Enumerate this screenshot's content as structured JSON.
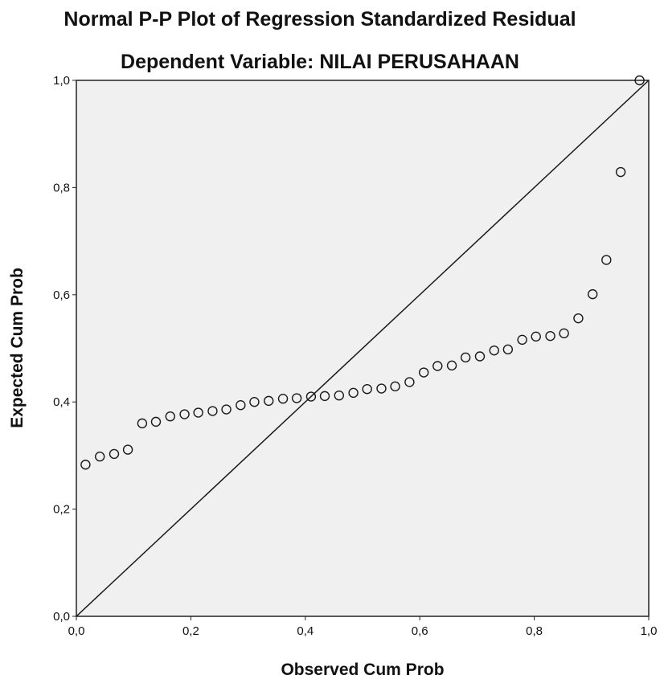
{
  "chart_data": {
    "type": "scatter",
    "title": "Normal P-P Plot of Regression Standardized Residual",
    "subtitle": "Dependent Variable: NILAI PERUSAHAAN",
    "xlabel": "Observed Cum Prob",
    "ylabel": "Expected Cum Prob",
    "xlim": [
      0,
      1
    ],
    "ylim": [
      0,
      1
    ],
    "xticks": [
      "0,0",
      "0,2",
      "0,4",
      "0,6",
      "0,8",
      "1,0"
    ],
    "yticks": [
      "0,0",
      "0,2",
      "0,4",
      "0,6",
      "0,8",
      "1,0"
    ],
    "grid": false,
    "legend": "none",
    "reference_line": {
      "from": [
        0,
        0
      ],
      "to": [
        1,
        1
      ]
    },
    "colors": {
      "plot_background": "#f0f0f0",
      "marker": "#1a1a1a",
      "line": "#1a1a1a"
    },
    "points": [
      {
        "x": 0.016,
        "y": 0.283
      },
      {
        "x": 0.041,
        "y": 0.298
      },
      {
        "x": 0.066,
        "y": 0.303
      },
      {
        "x": 0.09,
        "y": 0.311
      },
      {
        "x": 0.115,
        "y": 0.36
      },
      {
        "x": 0.139,
        "y": 0.363
      },
      {
        "x": 0.164,
        "y": 0.373
      },
      {
        "x": 0.189,
        "y": 0.377
      },
      {
        "x": 0.213,
        "y": 0.38
      },
      {
        "x": 0.238,
        "y": 0.383
      },
      {
        "x": 0.262,
        "y": 0.386
      },
      {
        "x": 0.287,
        "y": 0.394
      },
      {
        "x": 0.311,
        "y": 0.4
      },
      {
        "x": 0.336,
        "y": 0.402
      },
      {
        "x": 0.361,
        "y": 0.406
      },
      {
        "x": 0.385,
        "y": 0.407
      },
      {
        "x": 0.41,
        "y": 0.41
      },
      {
        "x": 0.434,
        "y": 0.411
      },
      {
        "x": 0.459,
        "y": 0.412
      },
      {
        "x": 0.484,
        "y": 0.417
      },
      {
        "x": 0.508,
        "y": 0.424
      },
      {
        "x": 0.533,
        "y": 0.425
      },
      {
        "x": 0.557,
        "y": 0.429
      },
      {
        "x": 0.582,
        "y": 0.437
      },
      {
        "x": 0.607,
        "y": 0.455
      },
      {
        "x": 0.631,
        "y": 0.467
      },
      {
        "x": 0.656,
        "y": 0.468
      },
      {
        "x": 0.68,
        "y": 0.483
      },
      {
        "x": 0.705,
        "y": 0.485
      },
      {
        "x": 0.73,
        "y": 0.496
      },
      {
        "x": 0.754,
        "y": 0.498
      },
      {
        "x": 0.779,
        "y": 0.516
      },
      {
        "x": 0.803,
        "y": 0.522
      },
      {
        "x": 0.828,
        "y": 0.523
      },
      {
        "x": 0.852,
        "y": 0.528
      },
      {
        "x": 0.877,
        "y": 0.556
      },
      {
        "x": 0.902,
        "y": 0.601
      },
      {
        "x": 0.926,
        "y": 0.665
      },
      {
        "x": 0.951,
        "y": 0.829
      },
      {
        "x": 0.984,
        "y": 1.0
      }
    ]
  }
}
